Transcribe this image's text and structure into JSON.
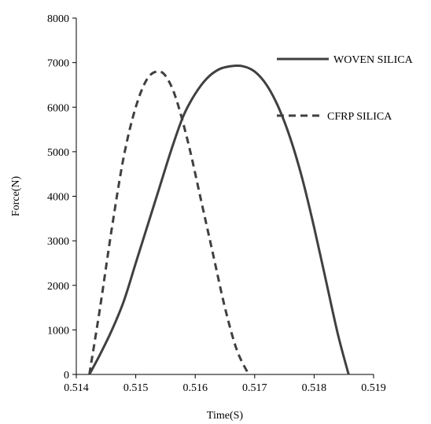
{
  "chart_data": {
    "type": "line",
    "title": "",
    "xlabel": "Time(S)",
    "ylabel": "Force(N)",
    "xlim": [
      0.514,
      0.519
    ],
    "ylim": [
      0,
      8000
    ],
    "x_ticks": [
      "0.514",
      "0.515",
      "0.516",
      "0.517",
      "0.518",
      "0.519"
    ],
    "y_ticks": [
      "0",
      "1000",
      "2000",
      "3000",
      "4000",
      "5000",
      "6000",
      "7000",
      "8000"
    ],
    "grid": false,
    "legend_position": "right",
    "series": [
      {
        "name": "WOVEN SILICA",
        "style": "solid",
        "color": "#404040",
        "x": [
          0.51422,
          0.5144,
          0.5146,
          0.5148,
          0.515,
          0.5152,
          0.5154,
          0.5156,
          0.5158,
          0.516,
          0.5162,
          0.5164,
          0.5166,
          0.5168,
          0.517,
          0.5172,
          0.5174,
          0.5176,
          0.5178,
          0.518,
          0.5182,
          0.5184,
          0.51858
        ],
        "y": [
          0,
          450,
          1000,
          1650,
          2500,
          3350,
          4200,
          5050,
          5800,
          6300,
          6650,
          6850,
          6920,
          6920,
          6800,
          6500,
          6000,
          5300,
          4400,
          3300,
          2100,
          900,
          0
        ]
      },
      {
        "name": "CFRP SILICA",
        "style": "dashed",
        "color": "#404040",
        "x": [
          0.51422,
          0.5144,
          0.5146,
          0.5148,
          0.515,
          0.5152,
          0.5154,
          0.51555,
          0.5157,
          0.5159,
          0.5161,
          0.5163,
          0.5165,
          0.5167,
          0.5169
        ],
        "y": [
          0,
          1500,
          3300,
          4900,
          6000,
          6650,
          6800,
          6600,
          6100,
          5100,
          3900,
          2700,
          1500,
          550,
          0
        ]
      }
    ]
  }
}
